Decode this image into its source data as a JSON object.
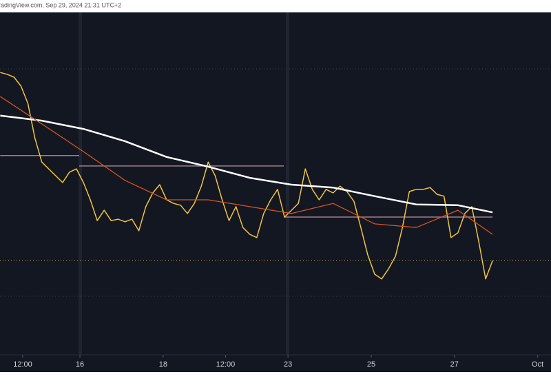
{
  "chart_data": {
    "type": "line",
    "title": "radingView.com, Sep 29, 2024 21:31 UTC+2",
    "xlim": [
      -46.1,
      271.7
    ],
    "ylim": [
      0,
      100
    ],
    "xticks": [
      {
        "value": -33,
        "label": "12:00"
      },
      {
        "value": 0,
        "label": "16"
      },
      {
        "value": 48,
        "label": "18"
      },
      {
        "value": 84,
        "label": "12:00"
      },
      {
        "value": 120,
        "label": "23"
      },
      {
        "value": 168,
        "label": "25"
      },
      {
        "value": 216,
        "label": "27"
      },
      {
        "value": 264,
        "label": "Oct"
      }
    ],
    "series": [
      {
        "color": "#f2c53d",
        "x": [
          -46,
          -42,
          -38,
          -34,
          -30,
          -26,
          -22,
          -18,
          -14,
          -10,
          -6,
          -2,
          2,
          6,
          10,
          14,
          18,
          22,
          26,
          30,
          34,
          38,
          42,
          46,
          50,
          54,
          58,
          62,
          66,
          70,
          74,
          78,
          82,
          86,
          90,
          94,
          98,
          102,
          106,
          110,
          114,
          118,
          122,
          126,
          130,
          134,
          138,
          142,
          146,
          150,
          154,
          158,
          162,
          166,
          170,
          174,
          178,
          182,
          186,
          190,
          194,
          198,
          202,
          206,
          210,
          214,
          218,
          222,
          226,
          230,
          234,
          238
        ],
        "values": [
          83.3,
          82.8,
          82.0,
          79.5,
          74.7,
          65.1,
          58.4,
          56.5,
          54.6,
          52.7,
          55.6,
          56.5,
          52.7,
          47.9,
          42.1,
          45.0,
          42.1,
          42.5,
          41.8,
          42.5,
          39.3,
          46.0,
          49.8,
          52.1,
          47.9,
          46.9,
          46.4,
          44.1,
          46.9,
          51.7,
          58.4,
          54.6,
          47.9,
          42.1,
          46.0,
          40.2,
          38.3,
          37.4,
          44.1,
          47.9,
          50.8,
          43.1,
          45.0,
          46.9,
          56.5,
          50.8,
          47.9,
          50.8,
          49.8,
          51.7,
          50.2,
          47.5,
          40.2,
          32.6,
          27.2,
          25.9,
          28.7,
          32.2,
          40.2,
          50.2,
          50.8,
          50.8,
          51.3,
          49.4,
          48.9,
          37.4,
          38.7,
          44.1,
          46.0,
          36.4,
          25.9,
          31.0
        ]
      },
      {
        "color": "#ffffff",
        "x": [
          -46,
          -22,
          2,
          26,
          50,
          74,
          98,
          122,
          146,
          170,
          194,
          218,
          238
        ],
        "values": [
          71.3,
          69.9,
          67.6,
          64.2,
          59.8,
          57.1,
          54.0,
          52.1,
          51.3,
          48.9,
          46.6,
          46.4,
          44.4
        ]
      },
      {
        "color": "#d9531e",
        "x": [
          -46,
          -22,
          2,
          26,
          50,
          74,
          98,
          122,
          146,
          170,
          194,
          218,
          238
        ],
        "values": [
          76.6,
          69.0,
          61.3,
          53.3,
          47.9,
          47.9,
          46.0,
          44.1,
          46.9,
          41.2,
          40.2,
          45.0,
          38.3
        ]
      }
    ],
    "levels": [
      {
        "value": 60.2,
        "x": [
          -46,
          -0.4
        ],
        "color": "#a07d85"
      },
      {
        "value": 57.3,
        "x": [
          -0.4,
          117.6
        ],
        "color": "#a07d85"
      },
      {
        "value": 43.1,
        "x": [
          117.6,
          238
        ],
        "color": "#a07d85"
      }
    ],
    "dotted_levels": [
      {
        "value": 31.0,
        "color": "#c9a227"
      },
      {
        "value": 84.3,
        "color": "#3a3f4d"
      },
      {
        "value": 21.1,
        "color": "#3a3f4d"
      }
    ]
  }
}
